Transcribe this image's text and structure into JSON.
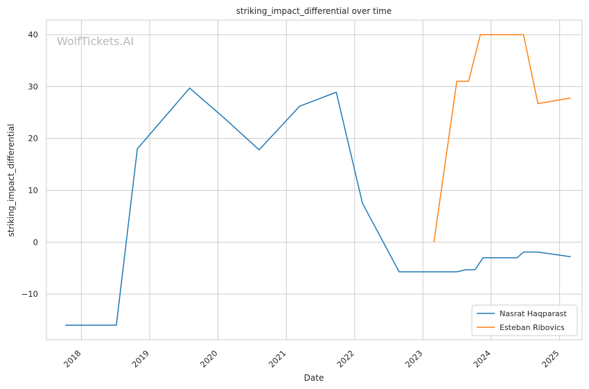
{
  "chart_data": {
    "type": "line",
    "title": "striking_impact_differential over time",
    "xlabel": "Date",
    "ylabel": "striking_impact_differential",
    "watermark": "WolfTickets.AI",
    "grid": true,
    "legend_position": "bottom-right",
    "x_ticks": [
      "2018",
      "2019",
      "2020",
      "2021",
      "2022",
      "2023",
      "2024",
      "2025"
    ],
    "y_ticks": [
      -10,
      0,
      10,
      20,
      30,
      40
    ],
    "y_tick_labels": [
      "−10",
      "0",
      "10",
      "20",
      "30",
      "40"
    ],
    "xlim": [
      "2017-06-28",
      "2025-05-01"
    ],
    "ylim": [
      -18.8,
      42.8
    ],
    "series": [
      {
        "name": "Nasrat Haqparast",
        "color": "#1f77b4",
        "points": [
          [
            "2017-10-07",
            -16.0
          ],
          [
            "2018-07-07",
            -16.0
          ],
          [
            "2018-10-27",
            18.0
          ],
          [
            "2019-08-03",
            29.7
          ],
          [
            "2020-02-01",
            24.0
          ],
          [
            "2020-08-08",
            17.8
          ],
          [
            "2021-03-13",
            26.2
          ],
          [
            "2021-09-25",
            28.9
          ],
          [
            "2022-02-12",
            7.5
          ],
          [
            "2022-08-27",
            -5.7
          ],
          [
            "2023-07-01",
            -5.7
          ],
          [
            "2023-08-19",
            -5.3
          ],
          [
            "2023-10-07",
            -5.3
          ],
          [
            "2023-11-18",
            -3.0
          ],
          [
            "2024-05-18",
            -3.0
          ],
          [
            "2024-06-22",
            -1.9
          ],
          [
            "2024-09-07",
            -1.9
          ],
          [
            "2025-03-01",
            -2.8
          ]
        ]
      },
      {
        "name": "Esteban Ribovics",
        "color": "#ff7f0e",
        "points": [
          [
            "2023-03-01",
            0.0
          ],
          [
            "2023-07-01",
            31.0
          ],
          [
            "2023-09-02",
            31.0
          ],
          [
            "2023-11-04",
            40.0
          ],
          [
            "2024-06-22",
            40.0
          ],
          [
            "2024-09-07",
            26.7
          ],
          [
            "2025-03-01",
            27.8
          ]
        ]
      }
    ]
  }
}
